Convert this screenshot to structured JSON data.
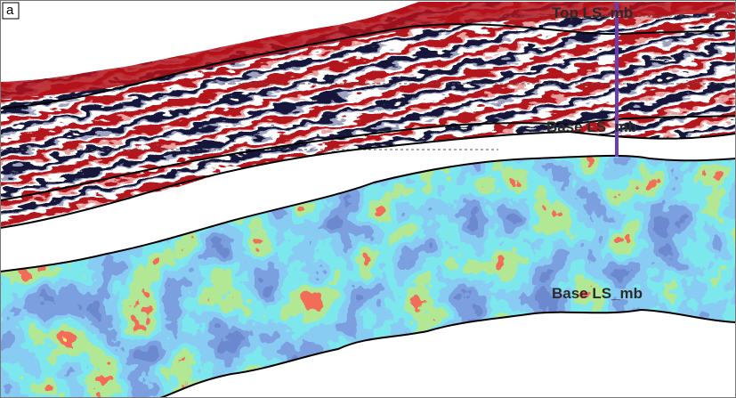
{
  "panel_label": "a",
  "labels": [
    "Top LS_mb",
    "Base LS_mb",
    "Base LS_mb"
  ]
}
